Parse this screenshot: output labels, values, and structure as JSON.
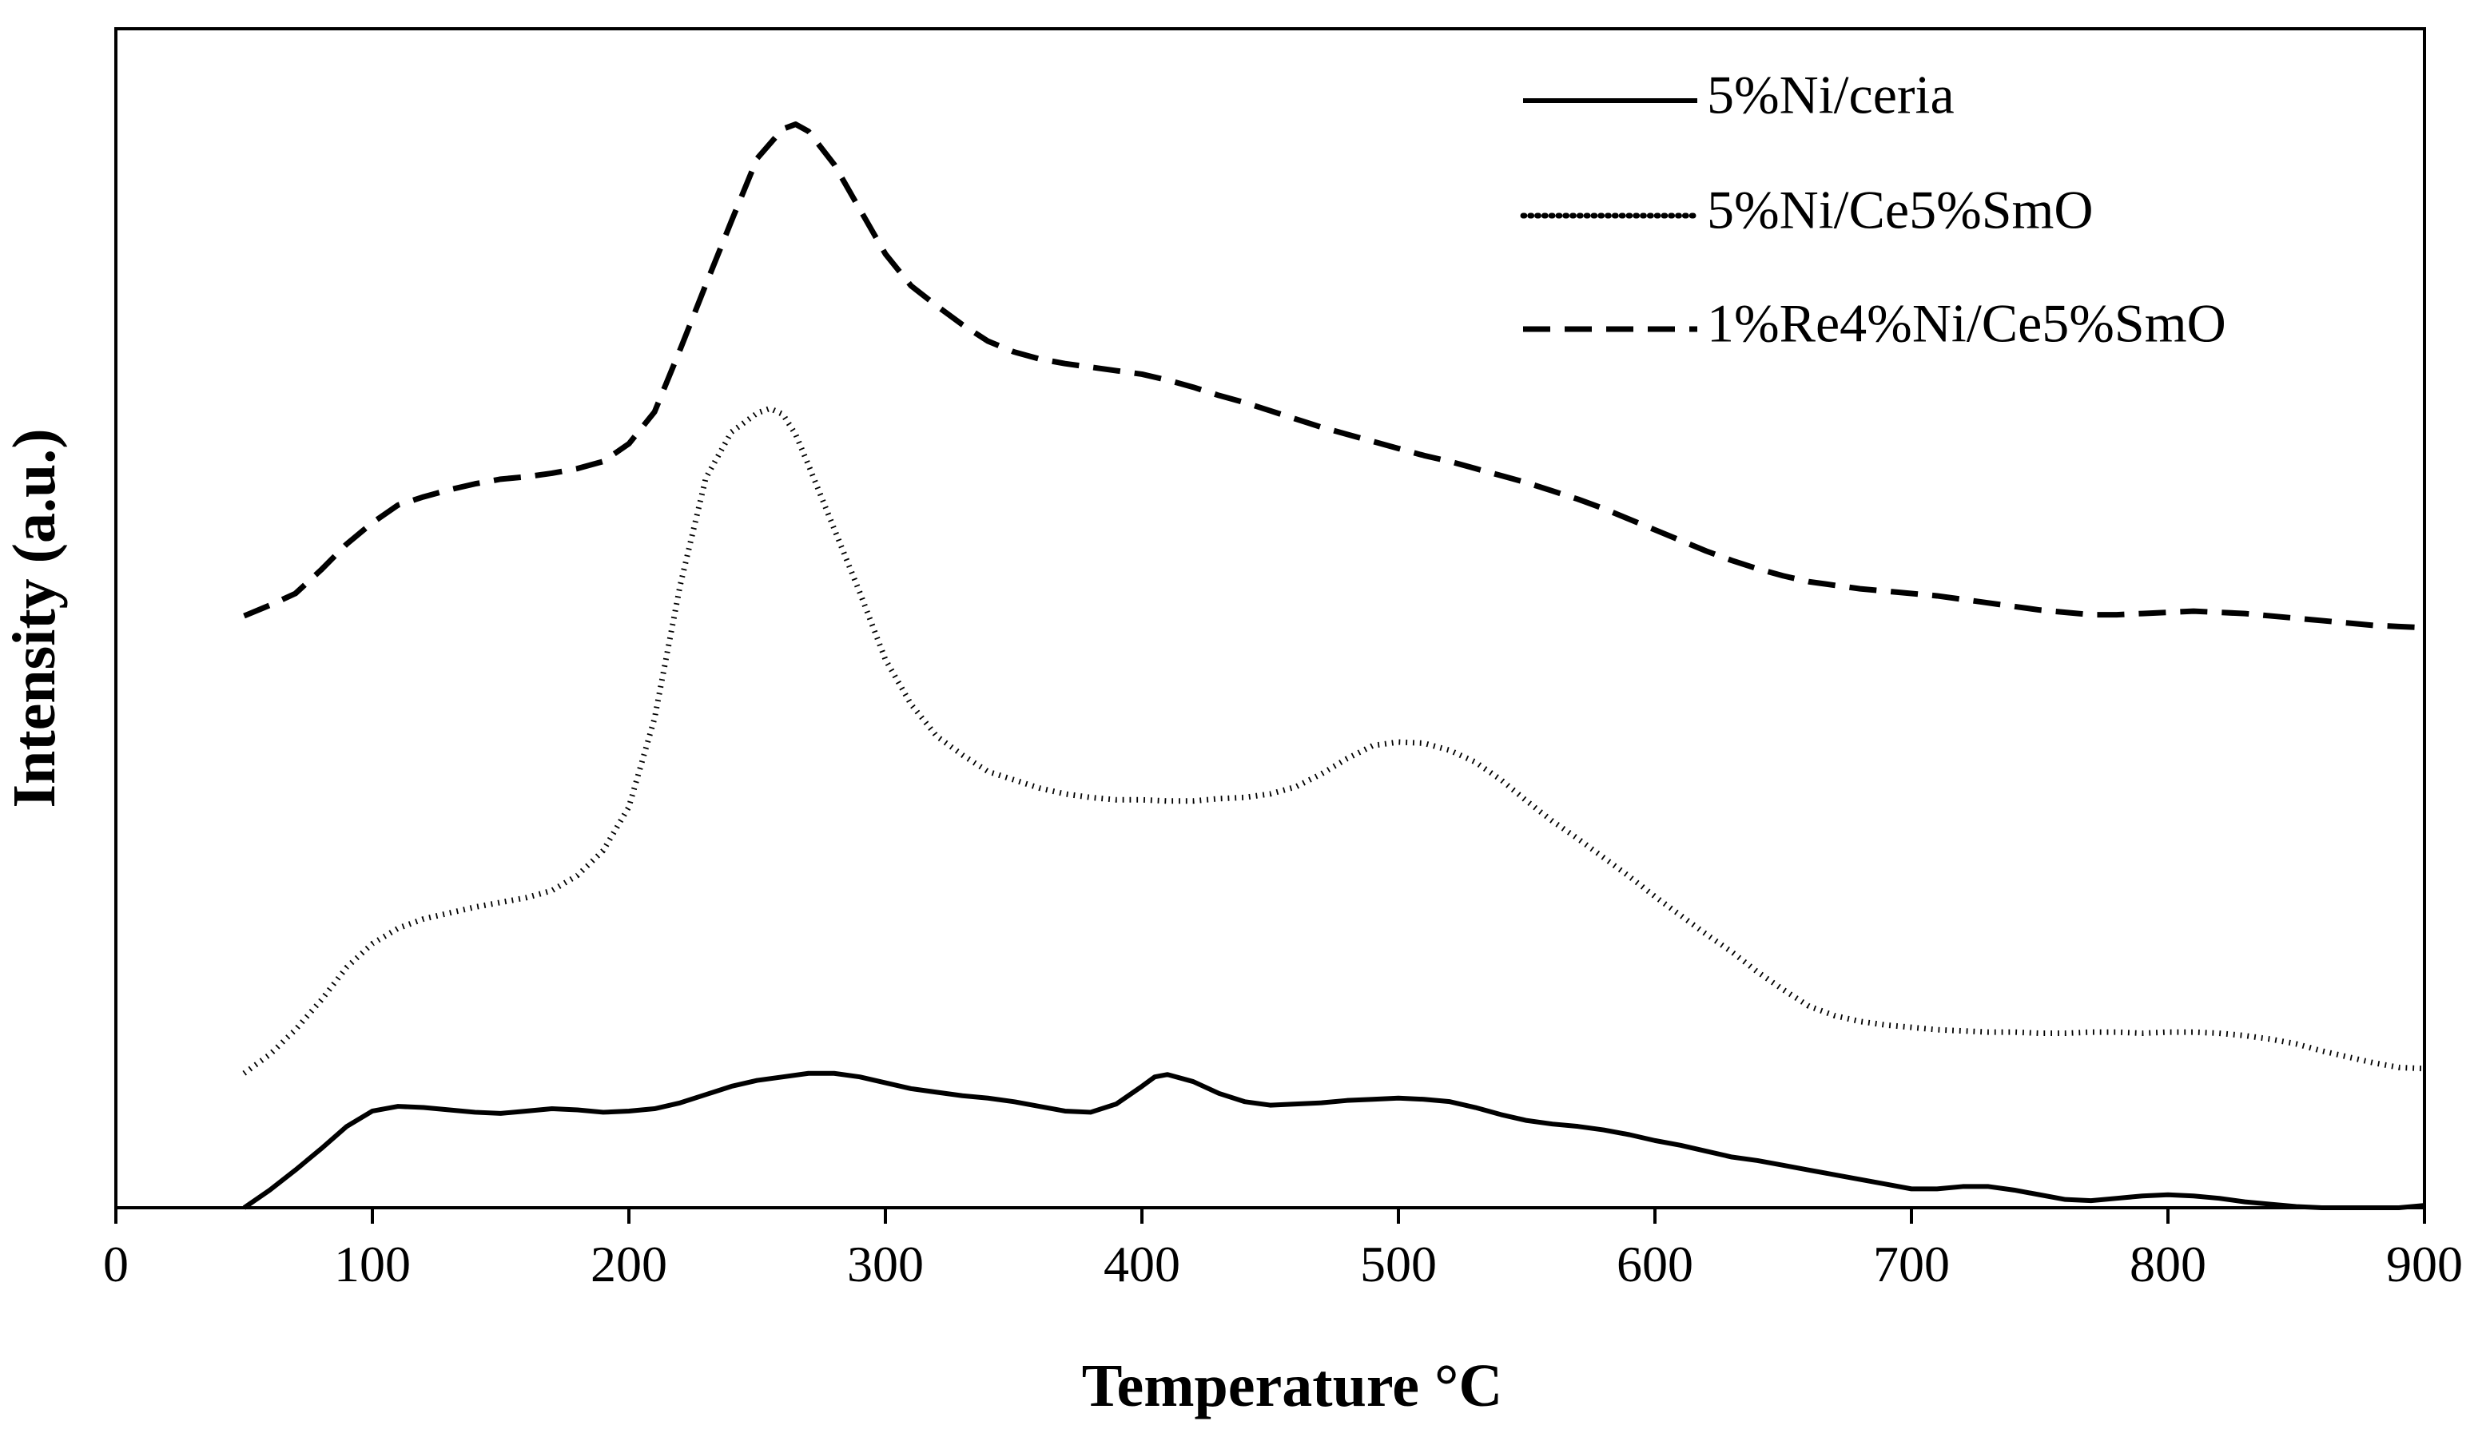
{
  "chart_data": {
    "type": "line",
    "title": "",
    "xlabel": "Temperature °C",
    "ylabel": "Intensity (a.u.)",
    "xlim": [
      0,
      900
    ],
    "ylim": [
      0,
      100
    ],
    "xticks": [
      0,
      100,
      200,
      300,
      400,
      500,
      600,
      700,
      800,
      900
    ],
    "xtick_labels": [
      "0",
      "100",
      "200",
      "300",
      "400",
      "500",
      "600",
      "700",
      "800",
      "900"
    ],
    "show_y_ticks": false,
    "grid": false,
    "legend_position": "top-right",
    "series": [
      {
        "name": "5%Ni/ceria",
        "style": "solid",
        "color": "#000000",
        "x": [
          50,
          60,
          70,
          80,
          90,
          100,
          110,
          120,
          130,
          140,
          150,
          160,
          170,
          180,
          190,
          200,
          210,
          220,
          230,
          240,
          250,
          260,
          270,
          280,
          290,
          300,
          310,
          320,
          330,
          340,
          350,
          360,
          370,
          380,
          390,
          400,
          405,
          410,
          420,
          430,
          440,
          450,
          460,
          470,
          480,
          490,
          500,
          510,
          520,
          530,
          540,
          550,
          560,
          570,
          580,
          590,
          600,
          610,
          620,
          630,
          640,
          650,
          660,
          670,
          680,
          690,
          700,
          710,
          720,
          730,
          740,
          750,
          760,
          770,
          780,
          790,
          800,
          810,
          820,
          830,
          840,
          850,
          860,
          870,
          880,
          890,
          900
        ],
        "values": [
          0.0,
          1.5,
          3.2,
          5.0,
          6.9,
          8.2,
          8.6,
          8.5,
          8.3,
          8.1,
          8.0,
          8.2,
          8.4,
          8.3,
          8.1,
          8.2,
          8.4,
          8.9,
          9.6,
          10.3,
          10.8,
          11.1,
          11.4,
          11.4,
          11.1,
          10.6,
          10.1,
          9.8,
          9.5,
          9.3,
          9.0,
          8.6,
          8.2,
          8.1,
          8.8,
          10.3,
          11.1,
          11.3,
          10.7,
          9.7,
          9.0,
          8.7,
          8.8,
          8.9,
          9.1,
          9.2,
          9.3,
          9.2,
          9.0,
          8.5,
          7.9,
          7.4,
          7.1,
          6.9,
          6.6,
          6.2,
          5.7,
          5.3,
          4.8,
          4.3,
          4.0,
          3.6,
          3.2,
          2.8,
          2.4,
          2.0,
          1.6,
          1.6,
          1.8,
          1.8,
          1.5,
          1.1,
          0.7,
          0.6,
          0.8,
          1.0,
          1.1,
          1.0,
          0.8,
          0.5,
          0.3,
          0.1,
          0.0,
          0.0,
          0.0,
          0.0,
          0.2
        ]
      },
      {
        "name": "5%Ni/Ce5%SmO",
        "style": "dotted",
        "color": "#000000",
        "x": [
          50,
          60,
          70,
          80,
          90,
          100,
          110,
          120,
          130,
          140,
          150,
          160,
          170,
          180,
          190,
          200,
          210,
          220,
          230,
          240,
          250,
          255,
          260,
          265,
          270,
          280,
          290,
          300,
          310,
          320,
          330,
          340,
          350,
          360,
          370,
          380,
          390,
          400,
          410,
          420,
          430,
          440,
          450,
          460,
          470,
          480,
          490,
          500,
          510,
          520,
          530,
          540,
          550,
          560,
          570,
          580,
          590,
          600,
          610,
          620,
          630,
          640,
          650,
          660,
          670,
          680,
          690,
          700,
          710,
          720,
          730,
          740,
          750,
          760,
          770,
          780,
          790,
          800,
          810,
          820,
          830,
          840,
          850,
          860,
          870,
          880,
          890,
          900
        ],
        "values": [
          11.4,
          13.0,
          15.1,
          17.6,
          20.4,
          22.4,
          23.7,
          24.5,
          25.0,
          25.5,
          25.9,
          26.3,
          26.9,
          28.2,
          30.3,
          34.0,
          41.5,
          52.8,
          61.9,
          65.8,
          67.4,
          67.8,
          67.3,
          65.6,
          63.0,
          57.6,
          52.2,
          46.5,
          42.7,
          40.0,
          38.4,
          37.0,
          36.3,
          35.6,
          35.1,
          34.8,
          34.6,
          34.6,
          34.5,
          34.5,
          34.7,
          34.8,
          35.1,
          35.7,
          36.8,
          38.1,
          39.2,
          39.5,
          39.4,
          38.8,
          37.8,
          36.3,
          34.5,
          32.8,
          31.3,
          29.7,
          28.1,
          26.4,
          24.8,
          23.2,
          21.7,
          20.0,
          18.5,
          17.1,
          16.3,
          15.8,
          15.5,
          15.3,
          15.1,
          15.0,
          14.9,
          14.9,
          14.8,
          14.8,
          14.9,
          14.9,
          14.8,
          14.9,
          14.9,
          14.8,
          14.6,
          14.3,
          13.9,
          13.3,
          12.8,
          12.3,
          11.9,
          11.8
        ]
      },
      {
        "name": "1%Re4%Ni/Ce5%SmO",
        "style": "dashed",
        "color": "#000000",
        "x": [
          50,
          60,
          70,
          80,
          90,
          100,
          110,
          120,
          130,
          140,
          150,
          160,
          170,
          180,
          190,
          200,
          210,
          220,
          230,
          240,
          250,
          260,
          265,
          270,
          280,
          290,
          300,
          310,
          320,
          330,
          340,
          350,
          360,
          370,
          380,
          390,
          400,
          410,
          420,
          430,
          440,
          450,
          460,
          470,
          480,
          490,
          500,
          510,
          520,
          530,
          540,
          550,
          560,
          570,
          580,
          590,
          600,
          610,
          620,
          630,
          640,
          650,
          660,
          670,
          680,
          690,
          700,
          710,
          720,
          730,
          740,
          750,
          760,
          770,
          780,
          790,
          800,
          810,
          820,
          830,
          840,
          850,
          860,
          870,
          880,
          890,
          900
        ],
        "values": [
          50.2,
          51.1,
          52.1,
          54.1,
          56.3,
          58.1,
          59.6,
          60.3,
          60.9,
          61.4,
          61.8,
          62.0,
          62.3,
          62.7,
          63.3,
          64.8,
          67.5,
          72.8,
          78.3,
          83.7,
          89.0,
          91.5,
          91.9,
          91.3,
          88.5,
          84.7,
          80.9,
          78.2,
          76.5,
          74.9,
          73.5,
          72.6,
          72.0,
          71.6,
          71.3,
          71.0,
          70.7,
          70.2,
          69.6,
          68.9,
          68.3,
          67.6,
          66.9,
          66.2,
          65.6,
          65.0,
          64.4,
          63.8,
          63.3,
          62.7,
          62.1,
          61.5,
          60.8,
          60.1,
          59.3,
          58.4,
          57.5,
          56.6,
          55.7,
          54.9,
          54.2,
          53.6,
          53.1,
          52.8,
          52.5,
          52.3,
          52.1,
          51.9,
          51.6,
          51.3,
          51.0,
          50.7,
          50.5,
          50.3,
          50.3,
          50.4,
          50.5,
          50.6,
          50.5,
          50.4,
          50.2,
          50.0,
          49.8,
          49.6,
          49.4,
          49.3,
          49.2
        ]
      }
    ]
  }
}
